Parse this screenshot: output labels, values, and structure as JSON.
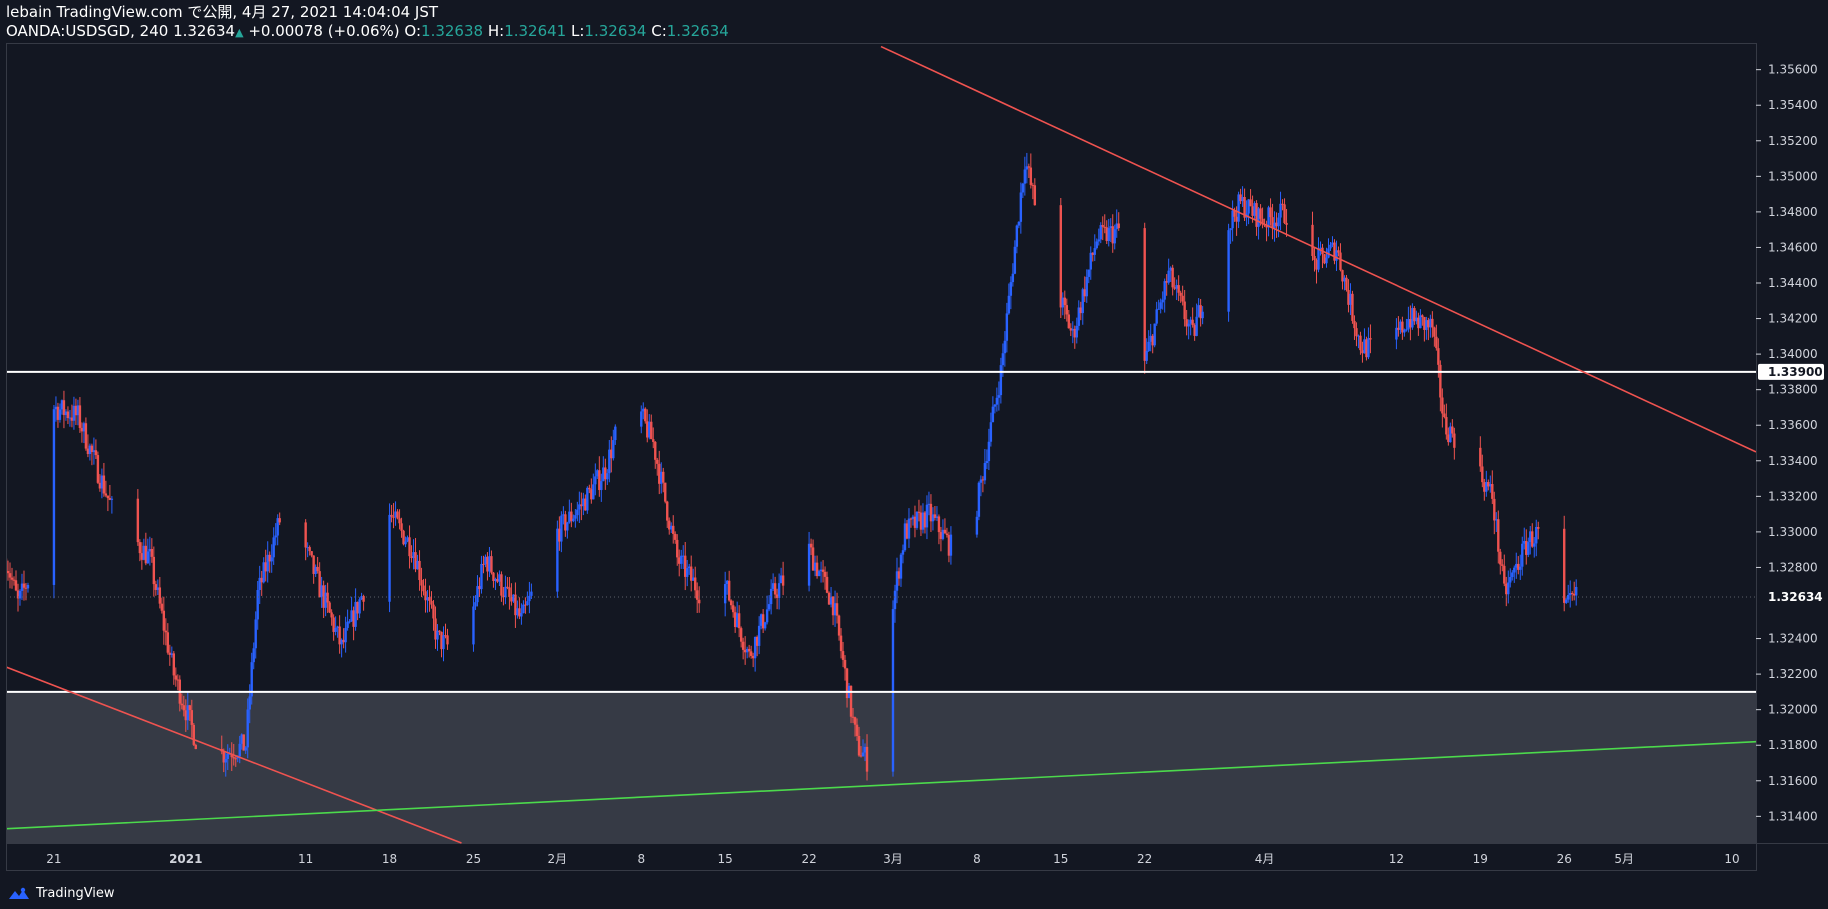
{
  "header": {
    "publisher": "lebain TradingView.com で公開, 4月 27, 2021 14:04:04 JST",
    "symbol_interval": "OANDA:USDSGD, 240",
    "last": "1.32634",
    "change": "+0.00078 (+0.06%)",
    "open_label": "O:",
    "open": "1.32638",
    "high_label": "H:",
    "high": "1.32641",
    "low_label": "L:",
    "low": "1.32634",
    "close_label": "C:",
    "close": "1.32634"
  },
  "footer": {
    "brand": "TradingView",
    "logo_icon": "tradingview-logo-icon"
  },
  "colors": {
    "background": "#131722",
    "up": "#2962ff",
    "down": "#ef5350",
    "trendline": "#ef5350",
    "support_line": "#4cd94c",
    "horizontal_line": "#ffffff",
    "zone_fill": "#363a45"
  },
  "chart_data": {
    "type": "candlestick",
    "title": "OANDA:USDSGD",
    "interval": "240",
    "ylim": [
      1.3125,
      1.3575
    ],
    "y_ticks": [
      "1.35600",
      "1.35400",
      "1.35200",
      "1.35000",
      "1.34800",
      "1.34600",
      "1.34400",
      "1.34200",
      "1.34000",
      "1.33800",
      "1.33600",
      "1.33400",
      "1.33200",
      "1.33000",
      "1.32800",
      "1.32400",
      "1.32200",
      "1.32000",
      "1.31800",
      "1.31600",
      "1.31400"
    ],
    "x_ticks": [
      {
        "label": "21",
        "date": "2020-12-21"
      },
      {
        "label": "2021",
        "date": "2021-01-01"
      },
      {
        "label": "11",
        "date": "2021-01-11"
      },
      {
        "label": "18",
        "date": "2021-01-18"
      },
      {
        "label": "25",
        "date": "2021-01-25"
      },
      {
        "label": "2月",
        "date": "2021-02-01"
      },
      {
        "label": "8",
        "date": "2021-02-08"
      },
      {
        "label": "15",
        "date": "2021-02-15"
      },
      {
        "label": "22",
        "date": "2021-02-22"
      },
      {
        "label": "3月",
        "date": "2021-03-01"
      },
      {
        "label": "8",
        "date": "2021-03-08"
      },
      {
        "label": "15",
        "date": "2021-03-15"
      },
      {
        "label": "22",
        "date": "2021-03-22"
      },
      {
        "label": "4月",
        "date": "2021-04-01"
      },
      {
        "label": "12",
        "date": "2021-04-12"
      },
      {
        "label": "19",
        "date": "2021-04-19"
      },
      {
        "label": "26",
        "date": "2021-04-26"
      },
      {
        "label": "5月",
        "date": "2021-05-01"
      },
      {
        "label": "10",
        "date": "2021-05-10"
      }
    ],
    "xlim": [
      "2020-12-17",
      "2021-05-12"
    ],
    "price_path": [
      {
        "date": "2020-12-17",
        "price": 1.3285
      },
      {
        "date": "2020-12-18",
        "price": 1.326
      },
      {
        "date": "2020-12-20",
        "price": 1.329
      },
      {
        "date": "2020-12-21",
        "price": 1.337
      },
      {
        "date": "2020-12-23",
        "price": 1.3365
      },
      {
        "date": "2020-12-26",
        "price": 1.331
      },
      {
        "date": "2020-12-29",
        "price": 1.3285
      },
      {
        "date": "2020-12-31",
        "price": 1.322
      },
      {
        "date": "2021-01-02",
        "price": 1.318
      },
      {
        "date": "2021-01-04",
        "price": 1.3175
      },
      {
        "date": "2021-01-06",
        "price": 1.318
      },
      {
        "date": "2021-01-07",
        "price": 1.3265
      },
      {
        "date": "2021-01-09",
        "price": 1.331
      },
      {
        "date": "2021-01-11",
        "price": 1.329
      },
      {
        "date": "2021-01-14",
        "price": 1.3235
      },
      {
        "date": "2021-01-16",
        "price": 1.327
      },
      {
        "date": "2021-01-18",
        "price": 1.331
      },
      {
        "date": "2021-01-20",
        "price": 1.329
      },
      {
        "date": "2021-01-22",
        "price": 1.324
      },
      {
        "date": "2021-01-24",
        "price": 1.323
      },
      {
        "date": "2021-01-26",
        "price": 1.3285
      },
      {
        "date": "2021-01-29",
        "price": 1.325
      },
      {
        "date": "2021-02-01",
        "price": 1.33
      },
      {
        "date": "2021-02-03",
        "price": 1.3315
      },
      {
        "date": "2021-02-05",
        "price": 1.3335
      },
      {
        "date": "2021-02-07",
        "price": 1.338
      },
      {
        "date": "2021-02-09",
        "price": 1.335
      },
      {
        "date": "2021-02-11",
        "price": 1.3285
      },
      {
        "date": "2021-02-13",
        "price": 1.3265
      },
      {
        "date": "2021-02-15",
        "price": 1.327
      },
      {
        "date": "2021-02-17",
        "price": 1.323
      },
      {
        "date": "2021-02-19",
        "price": 1.3265
      },
      {
        "date": "2021-02-22",
        "price": 1.329
      },
      {
        "date": "2021-02-24",
        "price": 1.326
      },
      {
        "date": "2021-02-26",
        "price": 1.318
      },
      {
        "date": "2021-02-27",
        "price": 1.317
      },
      {
        "date": "2021-03-01",
        "price": 1.326
      },
      {
        "date": "2021-03-02",
        "price": 1.33
      },
      {
        "date": "2021-03-04",
        "price": 1.331
      },
      {
        "date": "2021-03-06",
        "price": 1.329
      },
      {
        "date": "2021-03-08",
        "price": 1.3315
      },
      {
        "date": "2021-03-10",
        "price": 1.339
      },
      {
        "date": "2021-03-12",
        "price": 1.351
      },
      {
        "date": "2021-03-14",
        "price": 1.345
      },
      {
        "date": "2021-03-16",
        "price": 1.341
      },
      {
        "date": "2021-03-18",
        "price": 1.3465
      },
      {
        "date": "2021-03-20",
        "price": 1.347
      },
      {
        "date": "2021-03-22",
        "price": 1.3395
      },
      {
        "date": "2021-03-24",
        "price": 1.3445
      },
      {
        "date": "2021-03-26",
        "price": 1.341
      },
      {
        "date": "2021-03-28",
        "price": 1.346
      },
      {
        "date": "2021-03-30",
        "price": 1.3485
      },
      {
        "date": "2021-04-01",
        "price": 1.3475
      },
      {
        "date": "2021-04-03",
        "price": 1.348
      },
      {
        "date": "2021-04-05",
        "price": 1.345
      },
      {
        "date": "2021-04-07",
        "price": 1.346
      },
      {
        "date": "2021-04-09",
        "price": 1.3405
      },
      {
        "date": "2021-04-11",
        "price": 1.34
      },
      {
        "date": "2021-04-13",
        "price": 1.342
      },
      {
        "date": "2021-04-15",
        "price": 1.3415
      },
      {
        "date": "2021-04-16",
        "price": 1.336
      },
      {
        "date": "2021-04-18",
        "price": 1.3345
      },
      {
        "date": "2021-04-20",
        "price": 1.332
      },
      {
        "date": "2021-04-21",
        "price": 1.3265
      },
      {
        "date": "2021-04-23",
        "price": 1.3295
      },
      {
        "date": "2021-04-24",
        "price": 1.33
      },
      {
        "date": "2021-04-25",
        "price": 1.3285
      },
      {
        "date": "2021-04-26",
        "price": 1.3255
      },
      {
        "date": "2021-04-27",
        "price": 1.32634
      }
    ],
    "horizontal_lines": [
      {
        "name": "resistance",
        "price": 1.339,
        "label": "1.33900"
      },
      {
        "name": "support",
        "price": 1.321
      }
    ],
    "shaded_zone": {
      "from_price": 1.3125,
      "to_price": 1.321
    },
    "trendlines": [
      {
        "name": "descending-trendline",
        "color": "#ef5350",
        "points": [
          {
            "date": "2021-02-28",
            "price": 1.3573
          },
          {
            "date": "2021-05-12",
            "price": 1.3345
          }
        ]
      },
      {
        "name": "lower-red-trendline",
        "color": "#ef5350",
        "points": [
          {
            "date": "2020-12-17",
            "price": 1.3224
          },
          {
            "date": "2021-01-24",
            "price": 1.3125
          }
        ]
      },
      {
        "name": "green-support-trendline",
        "color": "#4cd94c",
        "points": [
          {
            "date": "2020-12-17",
            "price": 1.3133
          },
          {
            "date": "2021-05-12",
            "price": 1.3182
          }
        ]
      }
    ],
    "last_price": {
      "value": 1.32634,
      "label": "1.32634"
    }
  }
}
